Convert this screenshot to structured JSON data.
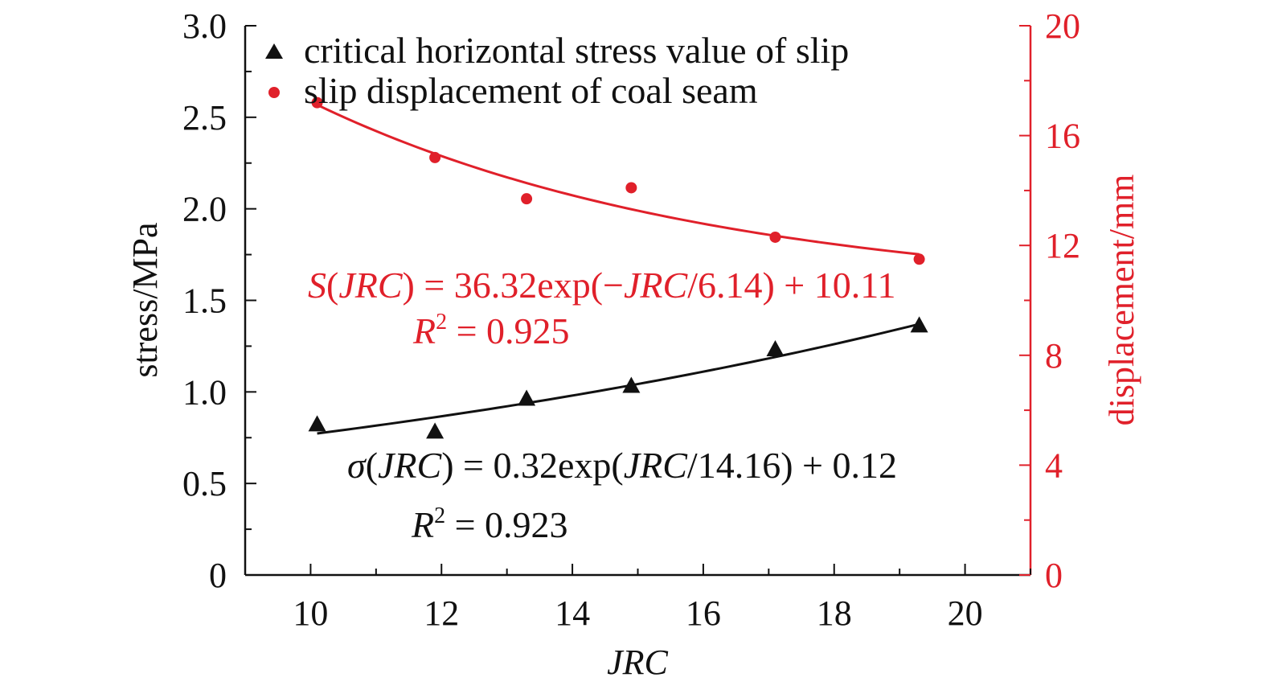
{
  "chart_data": {
    "type": "scatter",
    "title": "",
    "xlabel": "JRC",
    "ylabel_left": "stress/MPa",
    "ylabel_right": "displacement/mm",
    "xlim": [
      9,
      21
    ],
    "ylim_left": [
      0,
      3.0
    ],
    "ylim_right": [
      0,
      20
    ],
    "x_ticks": [
      10,
      12,
      14,
      16,
      18,
      20
    ],
    "y_ticks_left": [
      "0",
      "0.5",
      "1.0",
      "1.5",
      "2.0",
      "2.5",
      "3.0"
    ],
    "y_tick_values_left": [
      0,
      0.5,
      1.0,
      1.5,
      2.0,
      2.5,
      3.0
    ],
    "y_ticks_right": [
      "0",
      "4",
      "8",
      "12",
      "16",
      "20"
    ],
    "y_tick_values_right": [
      0,
      4,
      8,
      12,
      16,
      20
    ],
    "grid": false,
    "legend_position": "top-left",
    "colors": {
      "stress": "#111111",
      "displacement": "#e0202a"
    },
    "series": [
      {
        "name": "critical horizontal stress value of slip",
        "axis": "left",
        "marker": "triangle",
        "x": [
          10.1,
          11.9,
          13.3,
          14.9,
          17.1,
          19.3
        ],
        "y": [
          0.82,
          0.78,
          0.96,
          1.03,
          1.23,
          1.36
        ]
      },
      {
        "name": "slip displacement of coal seam",
        "axis": "right",
        "marker": "circle",
        "x": [
          10.1,
          11.9,
          13.3,
          14.9,
          17.1,
          19.3
        ],
        "y": [
          17.2,
          15.2,
          13.7,
          14.1,
          12.3,
          11.5
        ]
      }
    ],
    "fits": [
      {
        "series": "slip displacement of coal seam",
        "axis": "right",
        "label": "S(JRC) = 36.32exp(−JRC/6.14) + 10.11",
        "r2_label": "R² = 0.925",
        "a": 36.32,
        "b": -6.14,
        "c": 10.11,
        "x_range": [
          10.1,
          19.3
        ]
      },
      {
        "series": "critical horizontal stress value of slip",
        "axis": "left",
        "label": "σ(JRC) = 0.32exp(JRC/14.16) + 0.12",
        "r2_label": "R² = 0.923",
        "a": 0.32,
        "b": 14.16,
        "c": 0.12,
        "x_range": [
          10.1,
          19.3
        ]
      }
    ]
  }
}
